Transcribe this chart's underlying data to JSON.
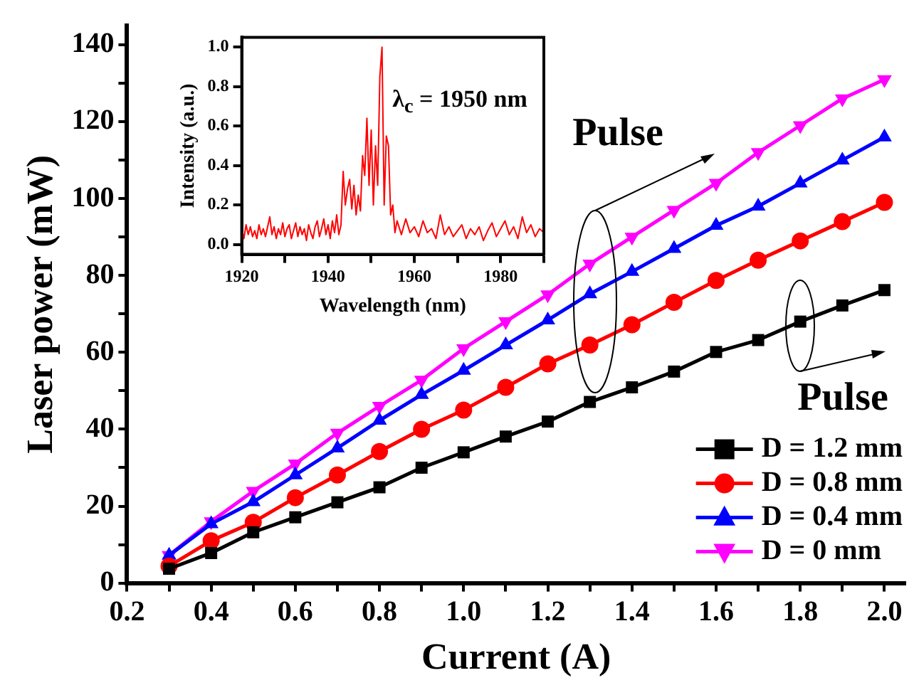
{
  "chart_data": [
    {
      "type": "line",
      "xlabel": "Current (A)",
      "ylabel": "Laser power (mW)",
      "x": [
        0.3,
        0.4,
        0.5,
        0.6,
        0.7,
        0.8,
        0.9,
        1.0,
        1.1,
        1.2,
        1.3,
        1.4,
        1.5,
        1.6,
        1.7,
        1.8,
        1.9,
        2.0
      ],
      "series": [
        {
          "name": "D = 1.2 mm",
          "color": "#000000",
          "marker": "square",
          "values": [
            3.7,
            7.8,
            13.2,
            17.1,
            21,
            24.9,
            30,
            34,
            38.1,
            42,
            47.1,
            50.9,
            55,
            60.1,
            63.2,
            68,
            72.2,
            76.2
          ]
        },
        {
          "name": "D = 0.8 mm",
          "color": "#ff0000",
          "marker": "circle",
          "values": [
            4.4,
            11,
            15.8,
            22.2,
            28.1,
            34.2,
            40,
            45,
            50.9,
            57,
            61.9,
            67.2,
            73,
            78.7,
            84,
            89,
            94,
            99
          ]
        },
        {
          "name": "D = 0.4 mm",
          "color": "#0000ff",
          "marker": "triangle",
          "values": [
            7.2,
            15.4,
            21.1,
            28.1,
            35.1,
            42.3,
            49,
            55.3,
            61.9,
            68.4,
            75.2,
            81,
            87,
            93,
            98,
            104,
            110,
            116
          ]
        },
        {
          "name": "D = 0 mm",
          "color": "#ff00ff",
          "marker": "triangle-down",
          "values": [
            7.2,
            16,
            23.9,
            31,
            39,
            46,
            52.8,
            61,
            68,
            75,
            83,
            90,
            97,
            104,
            112,
            119,
            126,
            131
          ]
        }
      ],
      "xlim": [
        0.2,
        2.05
      ],
      "xticks": [
        0.2,
        {
          "value": 0.3,
          "label": null
        },
        0.4,
        {
          "value": 0.5,
          "label": null
        },
        0.6,
        {
          "value": 0.7,
          "label": null
        },
        0.8,
        {
          "value": 0.9,
          "label": null
        },
        {
          "value": 1,
          "label": "1.0"
        },
        {
          "value": 1.1,
          "label": null
        },
        1.2,
        {
          "value": 1.3,
          "label": null
        },
        1.4,
        {
          "value": 1.5,
          "label": null
        },
        1.6,
        {
          "value": 1.7,
          "label": null
        },
        1.8,
        {
          "value": 1.9,
          "label": null
        },
        {
          "value": 2,
          "label": "2.0"
        }
      ],
      "ylim": [
        0,
        145
      ],
      "yticks": [
        0,
        {
          "value": 10,
          "label": null
        },
        20,
        {
          "value": 30,
          "label": null
        },
        40,
        {
          "value": 50,
          "label": null
        },
        60,
        {
          "value": 70,
          "label": null
        },
        80,
        {
          "value": 90,
          "label": null
        },
        100,
        {
          "value": 110,
          "label": null
        },
        120,
        {
          "value": 130,
          "label": null
        },
        140
      ],
      "annotations": [
        "Pulse",
        "Pulse"
      ],
      "grid": false,
      "legend": "bottom right",
      "line_style": "solid"
    },
    {
      "type": "line",
      "xlabel": "Wavelength (nm)",
      "ylabel": "Intensity (a.u.)",
      "x": [
        1920,
        1920.5,
        1921,
        1921.5,
        1922,
        1922.5,
        1923,
        1923.5,
        1924,
        1924.5,
        1925,
        1925.5,
        1926,
        1926.5,
        1927,
        1927.5,
        1928,
        1928.5,
        1929,
        1929.5,
        1930,
        1930.5,
        1931,
        1931.5,
        1932,
        1932.5,
        1933,
        1933.5,
        1934,
        1934.5,
        1935,
        1935.5,
        1936,
        1936.5,
        1937,
        1937.5,
        1938,
        1938.5,
        1939,
        1939.5,
        1940,
        1940.5,
        1941,
        1941.5,
        1942,
        1942.5,
        1943,
        1943.5,
        1944,
        1944.5,
        1945,
        1945.5,
        1946,
        1946.5,
        1947,
        1947.5,
        1948,
        1948.5,
        1949,
        1949.5,
        1950,
        1950.5,
        1951,
        1951.5,
        1952,
        1952.5,
        1953,
        1953.5,
        1954,
        1954.5,
        1955,
        1955.5,
        1956,
        1957,
        1958,
        1959,
        1960,
        1961,
        1962,
        1963,
        1964,
        1965,
        1966,
        1967,
        1968,
        1969,
        1970,
        1971,
        1972,
        1973,
        1974,
        1975,
        1976,
        1977,
        1978,
        1979,
        1980,
        1981,
        1982,
        1983,
        1984,
        1985,
        1986,
        1987,
        1988,
        1989,
        1990
      ],
      "series": [
        {
          "color": "#ff0000",
          "marker": "none",
          "values": [
            0.08,
            0.03,
            0.1,
            0.05,
            0.09,
            0.04,
            0.07,
            0.03,
            0.1,
            0.05,
            0.08,
            0.04,
            0.09,
            0.14,
            0.05,
            0.09,
            0.03,
            0.08,
            0.05,
            0.11,
            0.04,
            0.08,
            0.1,
            0.03,
            0.07,
            0.11,
            0.04,
            0.09,
            0.05,
            0.08,
            0.02,
            0.1,
            0.06,
            0.03,
            0.09,
            0.12,
            0.04,
            0.08,
            0.13,
            0.05,
            0.1,
            0.03,
            0.12,
            0.06,
            0.15,
            0.05,
            0.1,
            0.37,
            0.2,
            0.28,
            0.33,
            0.18,
            0.3,
            0.15,
            0.25,
            0.17,
            0.45,
            0.35,
            0.64,
            0.3,
            0.58,
            0.2,
            0.5,
            0.3,
            0.85,
            1.0,
            0.2,
            0.55,
            0.5,
            0.15,
            0.2,
            0.06,
            0.12,
            0.05,
            0.13,
            0.06,
            0.09,
            0.04,
            0.12,
            0.06,
            0.08,
            0.03,
            0.15,
            0.05,
            0.09,
            0.04,
            0.07,
            0.1,
            0.03,
            0.08,
            0.05,
            0.09,
            0.02,
            0.07,
            0.11,
            0.04,
            0.08,
            0.12,
            0.05,
            0.09,
            0.03,
            0.14,
            0.06,
            0.1,
            0.04,
            0.08,
            0.06
          ]
        }
      ],
      "xlim": [
        1920,
        1990
      ],
      "xticks": [
        1920,
        {
          "value": 1930,
          "label": null
        },
        1940,
        {
          "value": 1950,
          "label": null
        },
        1960,
        {
          "value": 1970,
          "label": null
        },
        1980,
        {
          "value": 1990,
          "label": null
        }
      ],
      "ylim": [
        -0.05,
        1.05
      ],
      "yticks": [
        {
          "value": 0,
          "label": "0.0"
        },
        0.2,
        0.4,
        0.6,
        0.8,
        {
          "value": 1,
          "label": "1.0"
        }
      ],
      "annotations": [
        "λ$_{c}$ = 1950 nm"
      ],
      "grid": false,
      "line_style": "solid"
    }
  ]
}
